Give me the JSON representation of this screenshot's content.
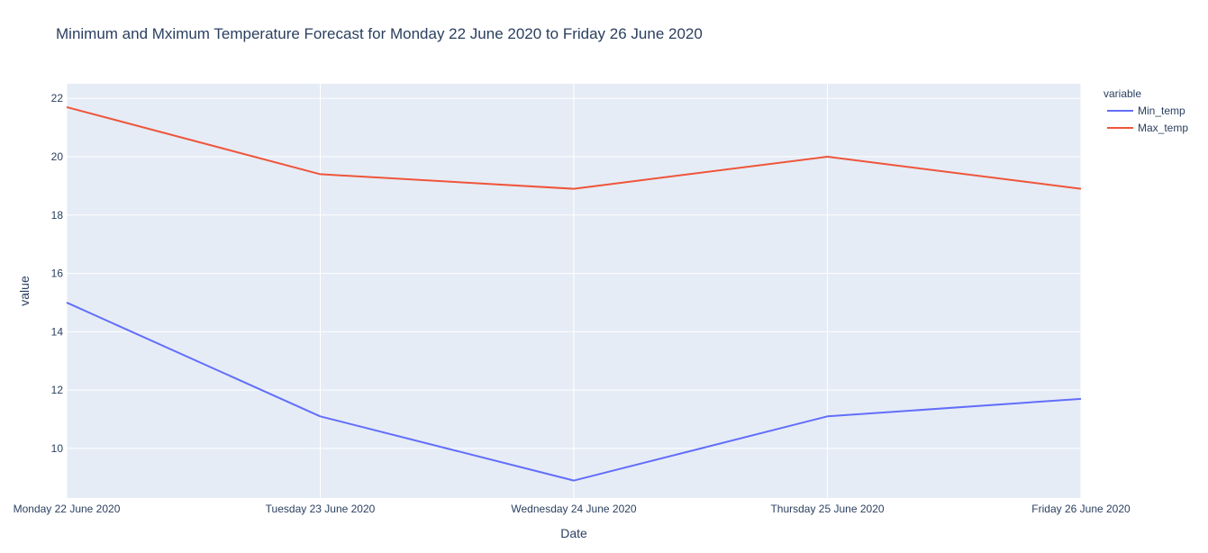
{
  "chart_data": {
    "type": "line",
    "title": "Minimum and Mximum Temperature Forecast for Monday 22 June 2020 to Friday 26 June 2020",
    "xlabel": "Date",
    "ylabel": "value",
    "categories": [
      "Monday 22 June 2020",
      "Tuesday 23 June 2020",
      "Wednesday 24 June 2020",
      "Thursday 25 June 2020",
      "Friday 26 June 2020"
    ],
    "ylim": [
      8.3,
      22.5
    ],
    "yticks": [
      10,
      12,
      14,
      16,
      18,
      20,
      22
    ],
    "grid": true,
    "legend": {
      "title": "variable",
      "placement": "top-right"
    },
    "series": [
      {
        "name": "Min_temp",
        "color": "#636efa",
        "values": [
          15.0,
          11.1,
          8.9,
          11.1,
          11.7
        ]
      },
      {
        "name": "Max_temp",
        "color": "#ef553b",
        "values": [
          21.7,
          19.4,
          18.9,
          20.0,
          18.9
        ]
      }
    ],
    "background_color": "#e5ecf6"
  }
}
